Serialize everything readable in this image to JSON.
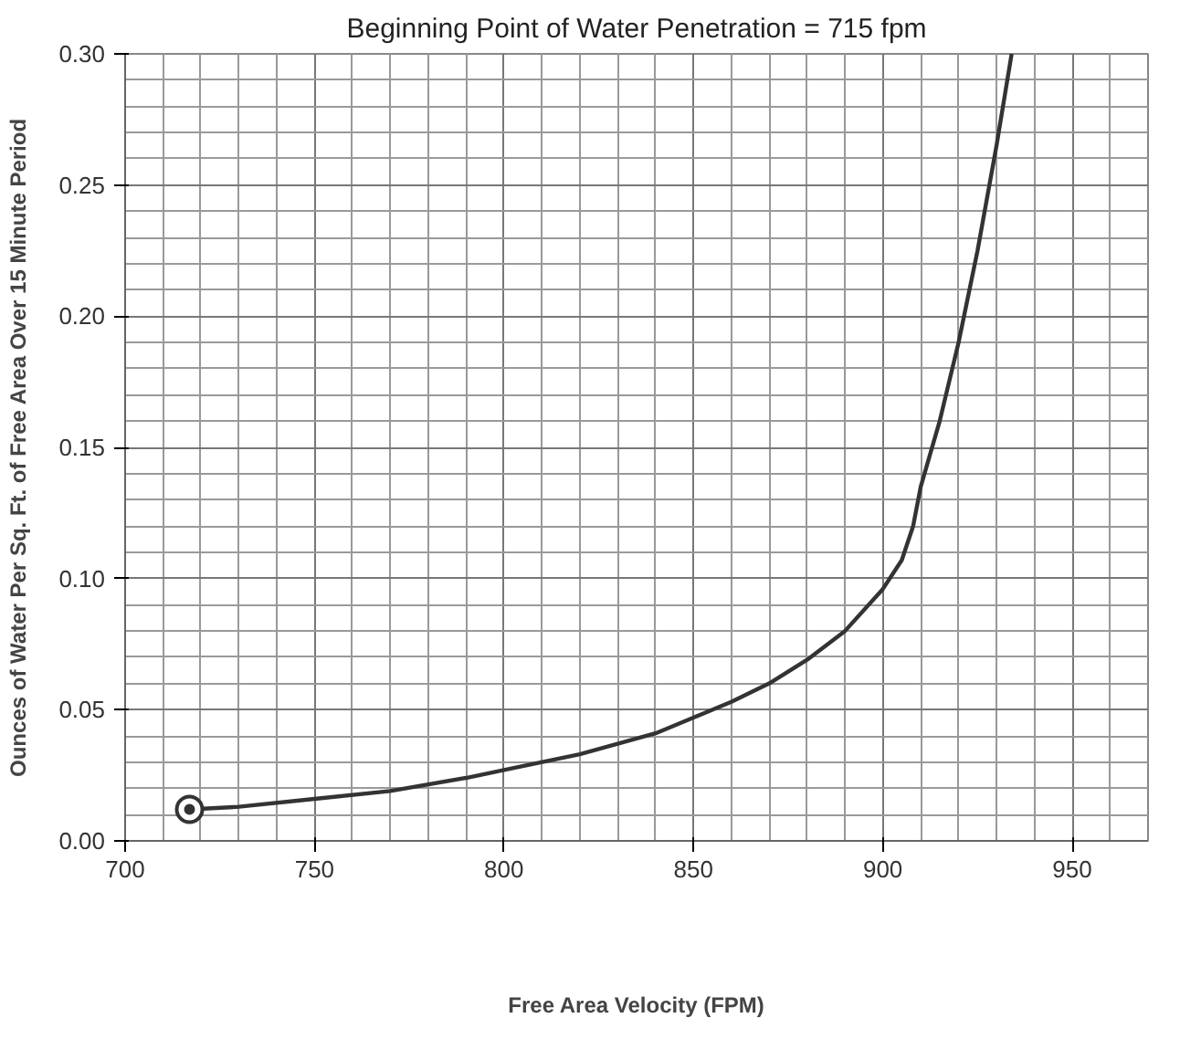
{
  "chart_data": {
    "type": "line",
    "title": "Beginning Point of Water Penetration = 715 fpm",
    "xlabel": "Free Area Velocity (FPM)",
    "ylabel": "Ounces of Water Per Sq. Ft. of Free Area Over 15 Minute Period",
    "series": [
      {
        "color": "#333333",
        "marker": "none",
        "x": [
          717,
          730,
          750,
          770,
          790,
          800,
          820,
          840,
          850,
          860,
          870,
          880,
          890,
          900,
          905,
          908,
          910,
          915,
          920,
          925,
          930,
          934
        ],
        "values": [
          0.012,
          0.013,
          0.016,
          0.019,
          0.024,
          0.027,
          0.033,
          0.041,
          0.047,
          0.053,
          0.06,
          0.069,
          0.08,
          0.096,
          0.107,
          0.12,
          0.135,
          0.16,
          0.19,
          0.225,
          0.265,
          0.3
        ]
      },
      {
        "type": "scatter",
        "color": "#333333",
        "marker": "circle",
        "x": [
          717
        ],
        "values": [
          0.012
        ]
      }
    ],
    "xlim": [
      700,
      970
    ],
    "ylim": [
      0,
      0.3
    ],
    "xticks": [
      700,
      750,
      800,
      850,
      900,
      950
    ],
    "yticks": [
      {
        "value": 0,
        "label": "0.00"
      },
      {
        "value": 0.05,
        "label": "0.05"
      },
      {
        "value": 0.1,
        "label": "0.10"
      },
      {
        "value": 0.15,
        "label": "0.15"
      },
      {
        "value": 0.2,
        "label": "0.20"
      },
      {
        "value": 0.25,
        "label": "0.25"
      },
      {
        "value": 0.3,
        "label": "0.30"
      }
    ],
    "grid": true,
    "line_style": "solid"
  }
}
